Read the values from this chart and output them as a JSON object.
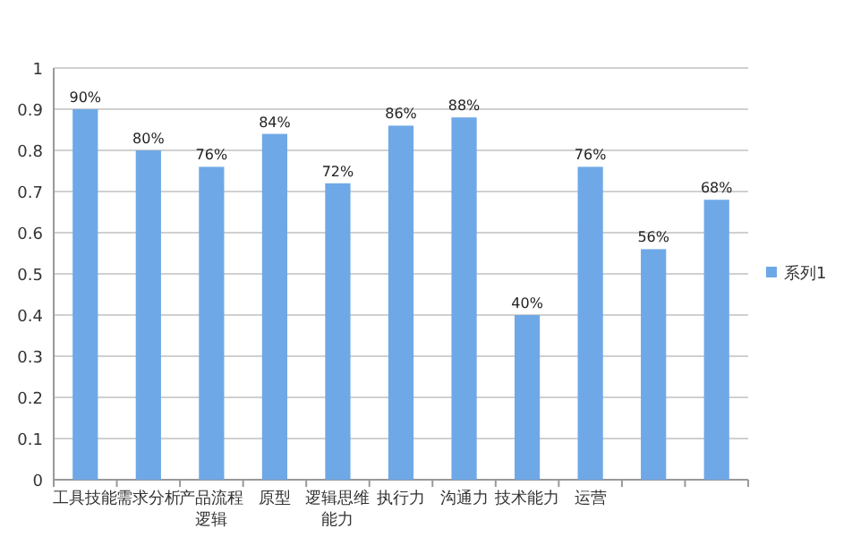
{
  "chart_data": {
    "type": "bar",
    "categories": [
      "工具技能",
      "需求分析",
      "产品流程逻辑",
      "原型",
      "逻辑思维能力",
      "执行力",
      "沟通力",
      "技术能力",
      "运营",
      null,
      null
    ],
    "series": [
      {
        "name": "系列1",
        "color": "#6fa8e6",
        "values": [
          0.9,
          0.8,
          0.76,
          0.84,
          0.72,
          0.86,
          0.88,
          0.4,
          0.76,
          0.56,
          0.68
        ],
        "value_labels": [
          "90%",
          "80%",
          "76%",
          "84%",
          "72%",
          "86%",
          "88%",
          "40%",
          "76%",
          "56%",
          "68%"
        ]
      }
    ],
    "ylim": [
      0,
      1
    ],
    "yticks": [
      0,
      0.1,
      0.2,
      0.3,
      0.4,
      0.5,
      0.6,
      0.7,
      0.8,
      0.9,
      1
    ],
    "grid": "y",
    "legend": "right"
  }
}
